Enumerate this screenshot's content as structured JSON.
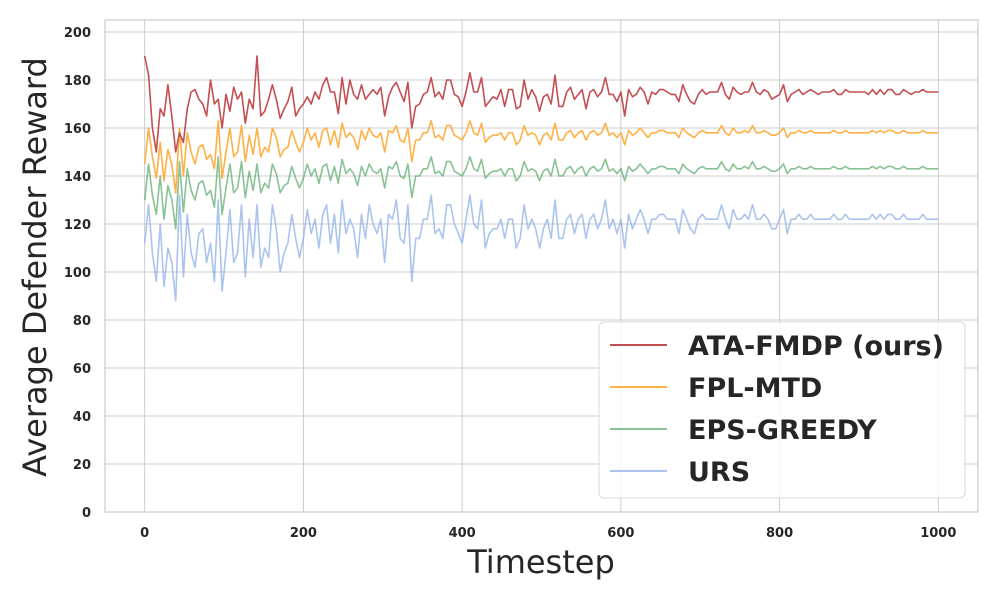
{
  "chart_data": {
    "type": "line",
    "title": "",
    "xlabel": "Timestep",
    "ylabel": "Average Defender Reward",
    "xlim": [
      -50,
      1050
    ],
    "ylim": [
      0,
      205
    ],
    "xticks": [
      0,
      200,
      400,
      600,
      800,
      1000
    ],
    "yticks": [
      0,
      20,
      40,
      60,
      80,
      100,
      120,
      140,
      160,
      180,
      200
    ],
    "grid": true,
    "legend_position": "lower-right",
    "x_start": 0,
    "x_end": 1000,
    "series": [
      {
        "name": "ATA-FMDP (ours)",
        "color": "#c44e52",
        "opacity": 1.0,
        "values": [
          190,
          182,
          160,
          150,
          168,
          165,
          178,
          165,
          150,
          158,
          154,
          168,
          175,
          176,
          172,
          170,
          165,
          180,
          170,
          172,
          160,
          174,
          167,
          177,
          172,
          175,
          162,
          172,
          168,
          190,
          165,
          167,
          172,
          178,
          172,
          164,
          168,
          171,
          177,
          165,
          168,
          170,
          173,
          170,
          175,
          172,
          178,
          181,
          175,
          175,
          166,
          181,
          170,
          180,
          174,
          172,
          178,
          172,
          174,
          176,
          174,
          177,
          165,
          173,
          177,
          179,
          175,
          171,
          179,
          160,
          169,
          170,
          174,
          175,
          181,
          173,
          175,
          172,
          180,
          180,
          174,
          173,
          169,
          175,
          183,
          175,
          175,
          181,
          169,
          171,
          173,
          172,
          176,
          169,
          176,
          176,
          168,
          169,
          180,
          172,
          176,
          173,
          167,
          173,
          174,
          170,
          182,
          169,
          169,
          175,
          177,
          172,
          174,
          176,
          168,
          175,
          176,
          173,
          175,
          181,
          174,
          174,
          171,
          175,
          165,
          176,
          173,
          174,
          177,
          175,
          170,
          175,
          174,
          176,
          176,
          175,
          174,
          174,
          171,
          178,
          174,
          171,
          170,
          174,
          176,
          174,
          175,
          175,
          175,
          179,
          174,
          172,
          177,
          175,
          174,
          175,
          175,
          179,
          175,
          174,
          176,
          175,
          172,
          173,
          174,
          178,
          171,
          174,
          175,
          176,
          174,
          175,
          176,
          175,
          174,
          175,
          175,
          175,
          176,
          174,
          174,
          176,
          175,
          175,
          175,
          175,
          175,
          174,
          176,
          174,
          176,
          174,
          176,
          176,
          174,
          174,
          176,
          175,
          174,
          175,
          175,
          176,
          175,
          175,
          175,
          175
        ]
      },
      {
        "name": "FPL-MTD",
        "color": "#ffa833",
        "opacity": 0.9,
        "values": [
          145,
          160,
          148,
          139,
          154,
          138,
          151,
          145,
          133,
          160,
          140,
          158,
          150,
          145,
          152,
          153,
          147,
          149,
          143,
          163,
          139,
          150,
          160,
          148,
          150,
          161,
          146,
          157,
          149,
          160,
          148,
          152,
          150,
          160,
          156,
          148,
          151,
          152,
          159,
          154,
          150,
          154,
          160,
          155,
          158,
          152,
          159,
          160,
          153,
          159,
          152,
          162,
          156,
          158,
          156,
          151,
          159,
          155,
          160,
          157,
          156,
          158,
          150,
          159,
          158,
          161,
          155,
          154,
          160,
          146,
          155,
          155,
          158,
          158,
          163,
          156,
          157,
          155,
          161,
          161,
          157,
          156,
          155,
          158,
          163,
          158,
          157,
          162,
          154,
          156,
          157,
          157,
          158,
          155,
          158,
          158,
          153,
          155,
          161,
          157,
          158,
          157,
          153,
          157,
          158,
          155,
          162,
          155,
          155,
          158,
          159,
          156,
          158,
          159,
          155,
          158,
          159,
          157,
          158,
          162,
          157,
          158,
          156,
          158,
          153,
          159,
          157,
          158,
          160,
          158,
          156,
          158,
          158,
          159,
          159,
          158,
          158,
          158,
          156,
          160,
          158,
          157,
          156,
          158,
          159,
          158,
          158,
          158,
          158,
          161,
          158,
          157,
          160,
          158,
          158,
          159,
          158,
          161,
          158,
          158,
          159,
          158,
          157,
          157,
          158,
          160,
          156,
          158,
          158,
          159,
          158,
          158,
          159,
          158,
          158,
          158,
          158,
          158,
          159,
          158,
          158,
          159,
          158,
          158,
          158,
          158,
          158,
          158,
          159,
          158,
          159,
          158,
          159,
          159,
          158,
          158,
          159,
          158,
          158,
          158,
          158,
          159,
          158,
          158,
          158,
          158
        ]
      },
      {
        "name": "EPS-GREEDY",
        "color": "#55a868",
        "opacity": 0.7,
        "values": [
          130,
          145,
          132,
          124,
          140,
          122,
          136,
          130,
          118,
          146,
          125,
          143,
          134,
          130,
          137,
          138,
          132,
          134,
          127,
          148,
          124,
          135,
          145,
          133,
          135,
          146,
          131,
          142,
          134,
          145,
          133,
          137,
          135,
          145,
          141,
          133,
          136,
          137,
          144,
          139,
          135,
          139,
          145,
          140,
          143,
          137,
          144,
          145,
          138,
          144,
          137,
          147,
          141,
          143,
          141,
          136,
          144,
          140,
          145,
          142,
          141,
          143,
          135,
          144,
          143,
          146,
          140,
          139,
          145,
          131,
          140,
          140,
          143,
          143,
          148,
          141,
          142,
          140,
          146,
          146,
          142,
          141,
          140,
          143,
          148,
          143,
          142,
          147,
          139,
          141,
          142,
          142,
          143,
          140,
          143,
          143,
          138,
          140,
          146,
          142,
          143,
          142,
          138,
          142,
          143,
          140,
          147,
          140,
          140,
          143,
          144,
          141,
          143,
          144,
          140,
          143,
          144,
          142,
          143,
          147,
          142,
          143,
          141,
          143,
          138,
          144,
          142,
          143,
          145,
          143,
          141,
          143,
          143,
          144,
          144,
          143,
          143,
          143,
          141,
          145,
          143,
          142,
          141,
          143,
          144,
          143,
          143,
          143,
          143,
          146,
          143,
          142,
          145,
          143,
          143,
          144,
          143,
          146,
          143,
          143,
          144,
          143,
          142,
          142,
          143,
          145,
          141,
          143,
          143,
          144,
          143,
          143,
          144,
          143,
          143,
          143,
          143,
          143,
          144,
          143,
          143,
          144,
          143,
          143,
          143,
          143,
          143,
          143,
          144,
          143,
          144,
          143,
          144,
          144,
          143,
          143,
          144,
          143,
          143,
          143,
          143,
          144,
          143,
          143,
          143,
          143
        ]
      },
      {
        "name": "URS",
        "color": "#8fb0e8",
        "opacity": 0.75,
        "values": [
          112,
          128,
          108,
          96,
          120,
          94,
          110,
          104,
          88,
          132,
          98,
          124,
          108,
          102,
          116,
          118,
          104,
          112,
          96,
          130,
          92,
          108,
          126,
          104,
          108,
          128,
          98,
          122,
          106,
          128,
          102,
          110,
          106,
          128,
          118,
          100,
          108,
          112,
          124,
          114,
          106,
          114,
          126,
          116,
          122,
          110,
          124,
          128,
          112,
          124,
          108,
          130,
          116,
          122,
          118,
          106,
          124,
          114,
          128,
          120,
          116,
          122,
          104,
          124,
          122,
          130,
          114,
          112,
          128,
          96,
          114,
          114,
          122,
          122,
          132,
          116,
          118,
          114,
          128,
          128,
          120,
          116,
          112,
          122,
          132,
          120,
          118,
          130,
          110,
          116,
          118,
          118,
          122,
          114,
          122,
          122,
          110,
          114,
          128,
          118,
          122,
          118,
          110,
          118,
          122,
          114,
          130,
          114,
          114,
          122,
          124,
          116,
          122,
          124,
          114,
          122,
          124,
          118,
          122,
          130,
          118,
          122,
          116,
          122,
          110,
          124,
          118,
          122,
          126,
          122,
          116,
          122,
          122,
          124,
          124,
          122,
          122,
          122,
          116,
          126,
          122,
          118,
          116,
          122,
          124,
          122,
          122,
          122,
          122,
          128,
          122,
          118,
          126,
          122,
          122,
          124,
          122,
          128,
          122,
          122,
          124,
          122,
          118,
          118,
          122,
          126,
          116,
          122,
          122,
          124,
          122,
          122,
          124,
          122,
          122,
          122,
          122,
          122,
          124,
          122,
          122,
          124,
          122,
          122,
          122,
          122,
          122,
          122,
          124,
          122,
          124,
          122,
          124,
          124,
          122,
          122,
          124,
          122,
          122,
          122,
          122,
          124,
          122,
          122,
          122,
          122
        ]
      }
    ]
  }
}
